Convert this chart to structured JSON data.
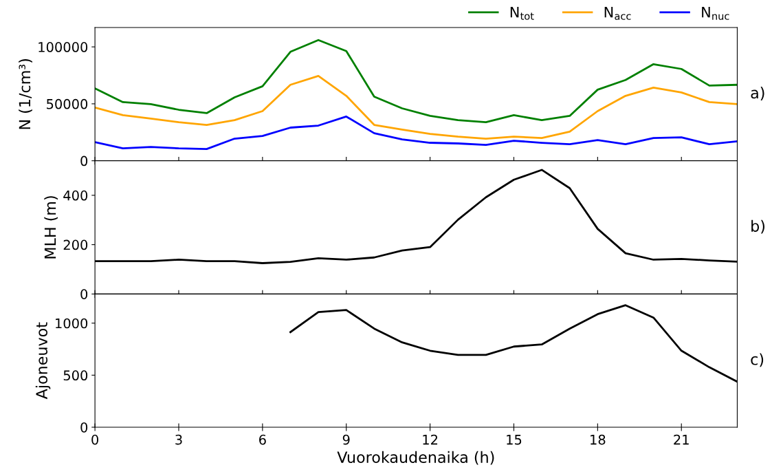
{
  "chart_data": [
    {
      "type": "line",
      "ylabel": "N (1/cm³)",
      "annotations": [
        "a)"
      ],
      "x": [
        0,
        1,
        2,
        3,
        4,
        5,
        6,
        7,
        8,
        9,
        10,
        11,
        12,
        13,
        14,
        15,
        16,
        17,
        18,
        19,
        20,
        21,
        22,
        23
      ],
      "xlim": [
        0,
        23
      ],
      "xticks": [
        0,
        3,
        6,
        9,
        12,
        15,
        18,
        21
      ],
      "ylim": [
        0,
        117000
      ],
      "yticks": [
        0,
        50000,
        100000
      ],
      "tick_labels": "y",
      "legend": "top right",
      "grid": false,
      "marker": "none",
      "line_style": "solid",
      "series": [
        {
          "name": "N$_{tot}$",
          "color": "#008000",
          "values": [
            63600,
            51500,
            49700,
            44800,
            41800,
            55700,
            65400,
            95700,
            106000,
            96300,
            56300,
            46000,
            39400,
            35700,
            33900,
            40000,
            35700,
            39400,
            62400,
            70900,
            84800,
            80600,
            66000,
            66700
          ]
        },
        {
          "name": "N$_{acc}$",
          "color": "#ffa500",
          "values": [
            46700,
            40000,
            37000,
            33900,
            31500,
            35700,
            43600,
            66700,
            74500,
            57000,
            31500,
            27300,
            23600,
            21200,
            19400,
            21200,
            20000,
            25500,
            43600,
            57000,
            64200,
            60000,
            51500,
            49700
          ]
        },
        {
          "name": "N$_{nuc}$",
          "color": "#0000ff",
          "values": [
            16400,
            10900,
            12100,
            10900,
            10300,
            19400,
            21800,
            29100,
            30900,
            38800,
            24200,
            18800,
            15800,
            15200,
            13900,
            17600,
            15800,
            14500,
            18200,
            14500,
            20000,
            20600,
            14500,
            17000
          ]
        }
      ]
    },
    {
      "type": "line",
      "ylabel": "MLH (m)",
      "annotations": [
        "b)"
      ],
      "x": [
        0,
        1,
        2,
        3,
        4,
        5,
        6,
        7,
        8,
        9,
        10,
        11,
        12,
        13,
        14,
        15,
        16,
        17,
        18,
        19,
        20,
        21,
        22,
        23
      ],
      "xlim": [
        0,
        23
      ],
      "xticks": [
        0,
        3,
        6,
        9,
        12,
        15,
        18,
        21
      ],
      "ylim": [
        0,
        540
      ],
      "yticks": [
        0,
        200,
        400
      ],
      "tick_labels": "y",
      "grid": false,
      "marker": "none",
      "line_style": "solid",
      "series": [
        {
          "color": "#000000",
          "values": [
            133,
            133,
            133,
            139,
            133,
            133,
            125,
            130,
            145,
            139,
            148,
            176,
            190,
            301,
            392,
            463,
            503,
            429,
            264,
            165,
            139,
            142,
            136,
            131
          ]
        }
      ]
    },
    {
      "type": "line",
      "ylabel": "Ajoneuvot",
      "xlabel": "Vuorokaudenaika (h)",
      "annotations": [
        "c)"
      ],
      "xlim": [
        0,
        23
      ],
      "xticks": [
        0,
        3,
        6,
        9,
        12,
        15,
        18,
        21
      ],
      "ylim": [
        0,
        1280
      ],
      "yticks": [
        0,
        500,
        1000
      ],
      "grid": false,
      "marker": "none",
      "line_style": "solid",
      "series": [
        {
          "color": "#000000",
          "x": [
            7,
            8,
            9,
            10,
            11,
            12,
            13,
            14,
            15,
            16,
            17,
            18,
            19,
            20,
            21,
            22,
            23
          ],
          "values": [
            914,
            1106,
            1126,
            947,
            815,
            735,
            695,
            695,
            775,
            795,
            947,
            1086,
            1172,
            1053,
            735,
            576,
            437
          ]
        }
      ]
    }
  ]
}
